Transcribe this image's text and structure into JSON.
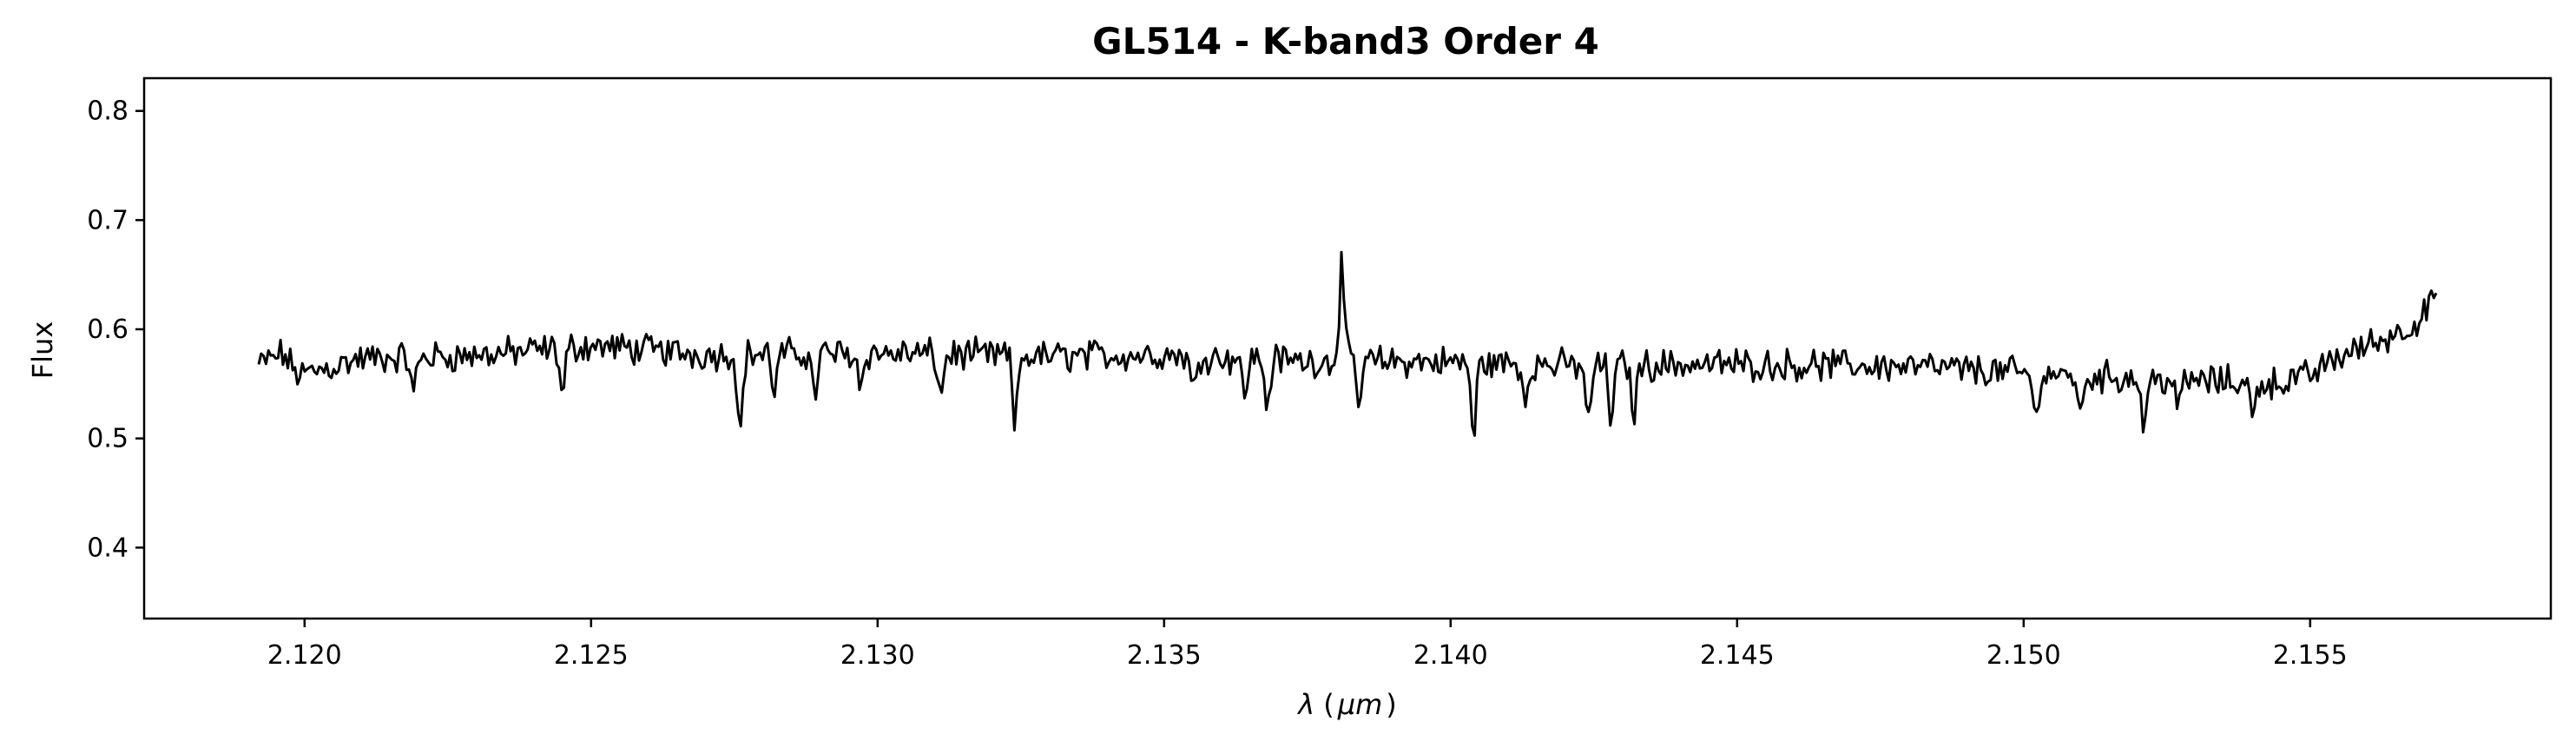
{
  "chart_data": {
    "type": "line",
    "title": "GL514 - K-band3 Order 4",
    "xlabel_parts": [
      "λ",
      "(",
      "μm",
      ")"
    ],
    "ylabel": "Flux",
    "xlim": [
      2.1172,
      2.1592
    ],
    "ylim": [
      0.335,
      0.83
    ],
    "x_ticks": [
      2.12,
      2.125,
      2.13,
      2.135,
      2.14,
      2.145,
      2.15,
      2.155
    ],
    "x_tick_labels": [
      "2.120",
      "2.125",
      "2.130",
      "2.135",
      "2.140",
      "2.145",
      "2.150",
      "2.155"
    ],
    "y_ticks": [
      0.4,
      0.5,
      0.6,
      0.7,
      0.8
    ],
    "y_tick_labels": [
      "0.4",
      "0.5",
      "0.6",
      "0.7",
      "0.8"
    ],
    "grid": false,
    "line_color": "#000000",
    "series": [
      {
        "x_start": 2.1192,
        "x_end": 2.1572,
        "anchors": [
          [
            2.1192,
            0.567
          ],
          [
            2.1196,
            0.578
          ],
          [
            2.1199,
            0.558
          ],
          [
            2.121,
            0.573
          ],
          [
            2.123,
            0.576
          ],
          [
            2.125,
            0.585
          ],
          [
            2.127,
            0.577
          ],
          [
            2.13,
            0.578
          ],
          [
            2.133,
            0.575
          ],
          [
            2.135,
            0.577
          ],
          [
            2.1375,
            0.571
          ],
          [
            2.14,
            0.57
          ],
          [
            2.142,
            0.567
          ],
          [
            2.145,
            0.568
          ],
          [
            2.148,
            0.566
          ],
          [
            2.15,
            0.56
          ],
          [
            2.152,
            0.555
          ],
          [
            2.1535,
            0.552
          ],
          [
            2.1545,
            0.551
          ],
          [
            2.155,
            0.558
          ],
          [
            2.1555,
            0.575
          ],
          [
            2.1565,
            0.596
          ],
          [
            2.1572,
            0.618
          ]
        ],
        "features": [
          [
            2.1219,
            -0.035
          ],
          [
            2.1245,
            -0.045
          ],
          [
            2.1276,
            -0.075
          ],
          [
            2.1282,
            -0.035
          ],
          [
            2.1289,
            -0.04
          ],
          [
            2.1297,
            -0.03
          ],
          [
            2.1311,
            -0.04
          ],
          [
            2.1324,
            -0.065
          ],
          [
            2.1355,
            -0.035
          ],
          [
            2.1364,
            -0.035
          ],
          [
            2.1368,
            -0.045
          ],
          [
            2.1381,
            0.09
          ],
          [
            2.1384,
            -0.04
          ],
          [
            2.1404,
            -0.07
          ],
          [
            2.1413,
            -0.035
          ],
          [
            2.1424,
            -0.055
          ],
          [
            2.1428,
            -0.05
          ],
          [
            2.1432,
            -0.045
          ],
          [
            2.1502,
            -0.045
          ],
          [
            2.151,
            -0.04
          ],
          [
            2.1521,
            -0.045
          ],
          [
            2.1527,
            -0.03
          ],
          [
            2.154,
            -0.035
          ],
          [
            2.1571,
            0.018
          ]
        ],
        "noise_amplitude": 0.022,
        "n_points": 900
      }
    ]
  }
}
